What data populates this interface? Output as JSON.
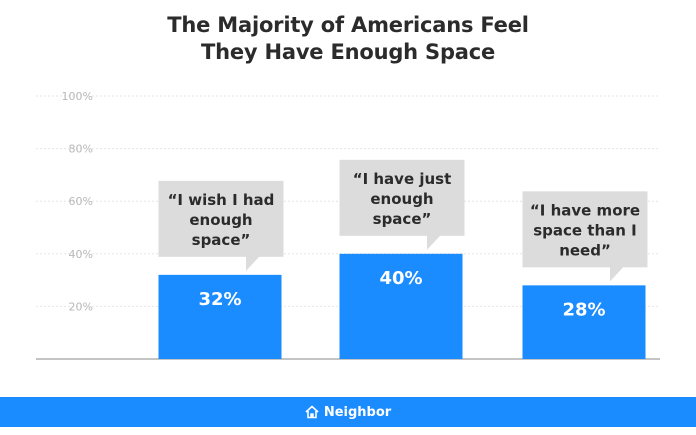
{
  "title_lines": [
    "The Majority of Americans Feel",
    "They Have Enough Space"
  ],
  "brand": {
    "name": "Neighbor",
    "icon": "house-icon",
    "color": "#1a8cff"
  },
  "colors": {
    "bar": "#1a8cff",
    "bubble": "#dcdcdc",
    "axis_text": "#b8b8b8",
    "grid": "#e6e6e6"
  },
  "chart_data": {
    "type": "bar",
    "title": "The Majority of Americans Feel They Have Enough Space",
    "xlabel": "",
    "ylabel": "",
    "ylim": [
      0,
      100
    ],
    "yticks": [
      "20%",
      "40%",
      "60%",
      "80%",
      "100%"
    ],
    "ytick_values": [
      20,
      40,
      60,
      80,
      100
    ],
    "grid": true,
    "categories": [
      [
        "“I wish I had",
        "enough",
        "space”"
      ],
      [
        "“I have just",
        "enough",
        "space”"
      ],
      [
        "“I have more",
        "space than I",
        "need”"
      ]
    ],
    "values": [
      32,
      40,
      28
    ],
    "data_labels": [
      "32%",
      "40%",
      "28%"
    ]
  }
}
